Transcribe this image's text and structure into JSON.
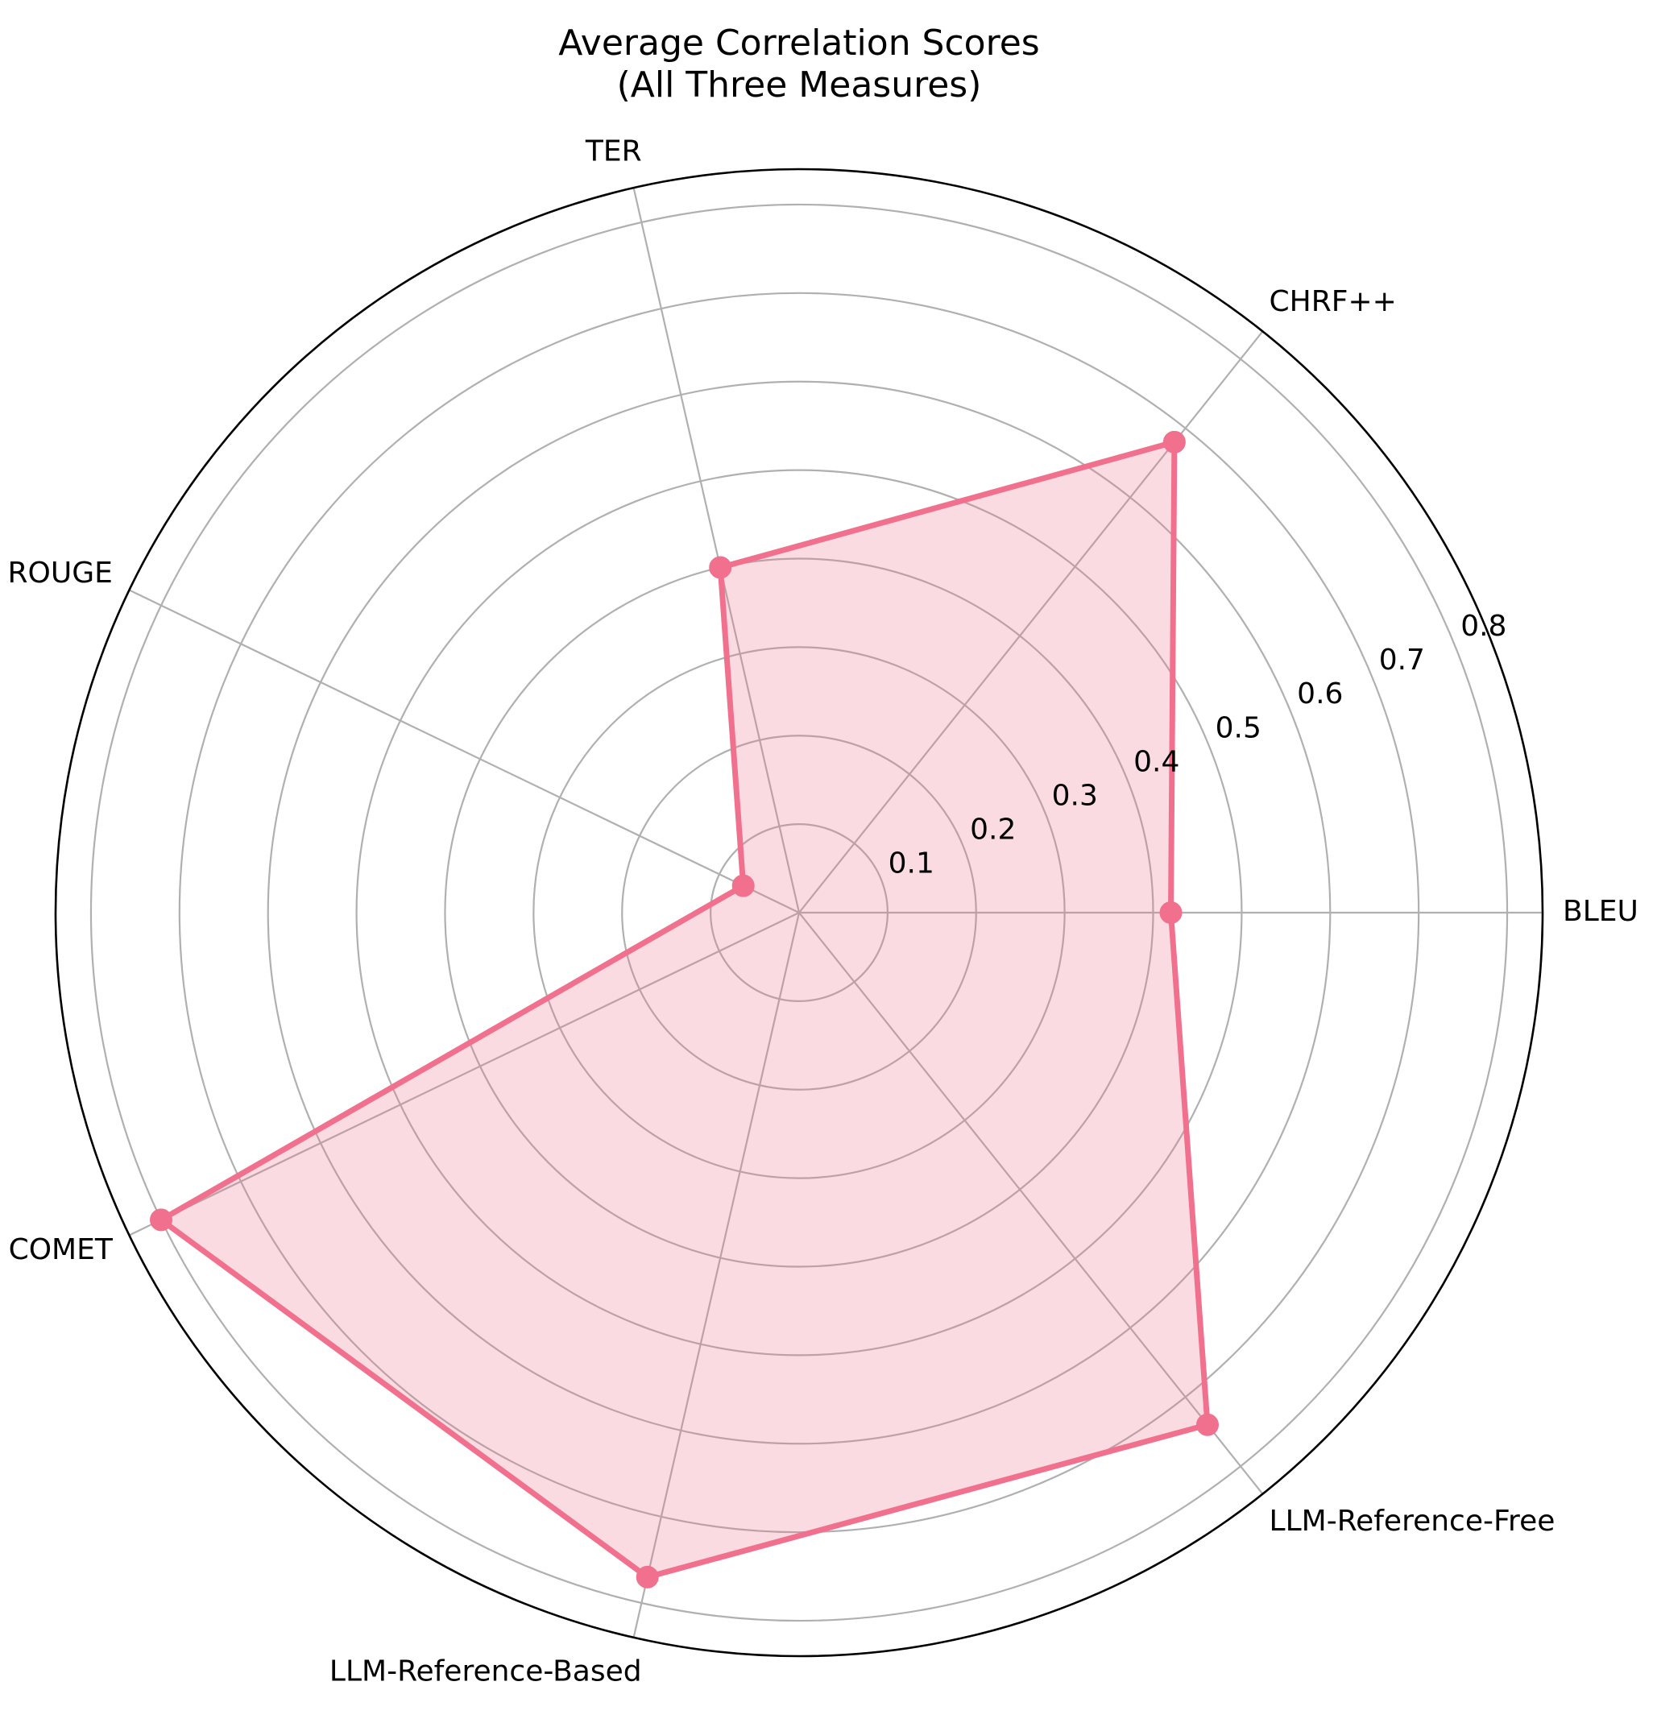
{
  "chart_data": {
    "type": "radar",
    "title_lines": [
      "Average Correlation Scores",
      "(All Three Measures)"
    ],
    "categories": [
      "BLEU",
      "CHRF++",
      "TER",
      "ROUGE",
      "COMET",
      "LLM-Reference-Based",
      "LLM-Reference-Free"
    ],
    "series": [
      {
        "values": [
          0.42,
          0.68,
          0.4,
          0.07,
          0.8,
          0.77,
          0.74
        ]
      }
    ],
    "rlim": [
      0,
      0.84
    ],
    "r_ticks": [
      0.1,
      0.2,
      0.3,
      0.4,
      0.5,
      0.6,
      0.7,
      0.8
    ],
    "r_tick_labels": [
      "0.1",
      "0.2",
      "0.3",
      "0.4",
      "0.5",
      "0.6",
      "0.7",
      "0.8"
    ],
    "grid": true,
    "legend": "none",
    "colors": {
      "line": "#f0708d",
      "fill": "#f0708d",
      "grid": "#b0b0b0",
      "frame": "#000000"
    }
  }
}
